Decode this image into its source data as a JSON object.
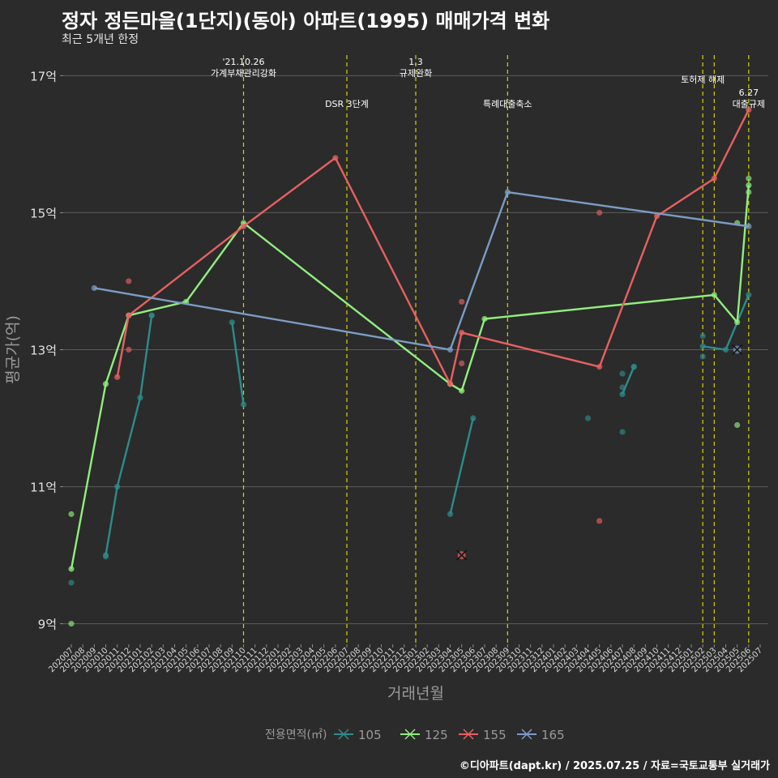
{
  "header": {
    "title": "정자 정든마을(1단지)(동아) 아파트(1995) 매매가격 변화",
    "subtitle": "최근 5개년 한정",
    "caption": "©디아파트(dapt.kr) / 2025.07.25 / 자료=국토교통부 실거래가"
  },
  "chart_data": {
    "type": "line",
    "xlabel": "거래년월",
    "ylabel": "평균가(억)",
    "ylim": [
      8.7,
      17.3
    ],
    "y_ticks": [
      {
        "value": 9,
        "label": "9억"
      },
      {
        "value": 11,
        "label": "11억"
      },
      {
        "value": 13,
        "label": "13억"
      },
      {
        "value": 15,
        "label": "15억"
      },
      {
        "value": 17,
        "label": "17억"
      }
    ],
    "x_categories": [
      "202007",
      "202008",
      "202009",
      "202010",
      "202011",
      "202012",
      "202101",
      "202102",
      "202103",
      "202104",
      "202105",
      "202106",
      "202107",
      "202108",
      "202109",
      "202110",
      "202111",
      "202112",
      "202201",
      "202202",
      "202203",
      "202204",
      "202205",
      "202206",
      "202207",
      "202208",
      "202209",
      "202210",
      "202211",
      "202212",
      "202301",
      "202302",
      "202303",
      "202304",
      "202305",
      "202306",
      "202307",
      "202308",
      "202309",
      "202310",
      "202311",
      "202312",
      "202401",
      "202402",
      "202403",
      "202404",
      "202405",
      "202406",
      "202407",
      "202408",
      "202409",
      "202410",
      "202411",
      "202412",
      "202501",
      "202502",
      "202503",
      "202504",
      "202505",
      "202506",
      "202507"
    ],
    "x_ticks": [
      "202007",
      "202008",
      "202009",
      "202010",
      "202011",
      "202012",
      "202101",
      "202102",
      "202103",
      "202104",
      "202105",
      "202106",
      "202107",
      "202108",
      "202109",
      "202110",
      "202111",
      "202112",
      "202201",
      "202202",
      "202203",
      "202204",
      "202205",
      "202206",
      "202207",
      "202208",
      "202209",
      "202210",
      "202211",
      "202212",
      "202301",
      "202302",
      "202303",
      "202304",
      "202305",
      "202306",
      "202307",
      "202308",
      "202309",
      "202310",
      "202311",
      "202312",
      "202401",
      "202402",
      "202403",
      "202404",
      "202405",
      "202406",
      "202407",
      "202408",
      "202409",
      "202410",
      "202411",
      "202412",
      "202501",
      "202502",
      "202503",
      "202504",
      "202505",
      "202506",
      "202507"
    ],
    "legend": {
      "title": "전용면적(㎡)",
      "position": "bottom"
    },
    "events": [
      {
        "x": "202110",
        "label_lines": [
          "'21.10.26",
          "가계부채관리강화"
        ],
        "row": 1
      },
      {
        "x": "202207",
        "label_lines": [
          "DSR 3단계"
        ],
        "row": 2
      },
      {
        "x": "202301",
        "label_lines": [
          "1.3",
          "규제완화"
        ],
        "row": 1
      },
      {
        "x": "202309",
        "label_lines": [
          "특례대출축소"
        ],
        "row": 2
      },
      {
        "x": "202502",
        "label_lines": [
          "토허제 해제"
        ],
        "row": 1
      },
      {
        "x": "202503",
        "label_lines": [],
        "row": 1
      },
      {
        "x": "202506",
        "label_lines": [
          "6.27",
          "대출규제"
        ],
        "row": 2
      }
    ],
    "series": [
      {
        "name": "105",
        "color": "#2e8b8b",
        "segments": [
          [
            [
              "202010",
              10.0
            ],
            [
              "202011",
              11.0
            ],
            [
              "202101",
              12.3
            ],
            [
              "202102",
              13.5
            ]
          ],
          [
            [
              "202109",
              13.4
            ],
            [
              "202110",
              12.2
            ]
          ],
          [
            [
              "202304",
              10.6
            ],
            [
              "202306",
              12.0
            ]
          ],
          [
            [
              "202407",
              12.35
            ],
            [
              "202408",
              12.75
            ]
          ],
          [
            [
              "202502",
              13.05
            ],
            [
              "202504",
              13.0
            ],
            [
              "202506",
              13.8
            ]
          ]
        ],
        "points": [
          [
            "202007",
            9.6
          ],
          [
            "202010",
            9.98
          ],
          [
            "202102",
            13.5
          ],
          [
            "202404",
            12.0
          ],
          [
            "202407",
            12.65
          ],
          [
            "202407",
            12.45
          ],
          [
            "202407",
            11.8
          ],
          [
            "202408",
            12.75
          ],
          [
            "202502",
            13.2
          ],
          [
            "202502",
            12.9
          ]
        ],
        "cancelled": []
      },
      {
        "name": "125",
        "color": "#90ee7e",
        "segments": [
          [
            [
              "202007",
              9.8
            ],
            [
              "202010",
              12.5
            ],
            [
              "202012",
              13.5
            ],
            [
              "202105",
              13.7
            ],
            [
              "202110",
              14.85
            ],
            [
              "202304",
              12.5
            ],
            [
              "202305",
              12.4
            ],
            [
              "202307",
              13.45
            ],
            [
              "202503",
              13.8
            ],
            [
              "202505",
              13.4
            ],
            [
              "202506",
              15.4
            ]
          ]
        ],
        "points": [
          [
            "202007",
            10.6
          ],
          [
            "202007",
            9.0
          ],
          [
            "202505",
            11.9
          ],
          [
            "202505",
            14.85
          ],
          [
            "202506",
            15.5
          ],
          [
            "202506",
            15.3
          ]
        ],
        "cancelled": []
      },
      {
        "name": "155",
        "color": "#e86060",
        "segments": [
          [
            [
              "202011",
              12.6
            ],
            [
              "202012",
              13.5
            ],
            [
              "202110",
              14.8
            ],
            [
              "202206",
              15.8
            ],
            [
              "202304",
              12.5
            ],
            [
              "202305",
              13.25
            ],
            [
              "202405",
              12.75
            ],
            [
              "202410",
              14.95
            ],
            [
              "202503",
              15.5
            ],
            [
              "202506",
              16.5
            ]
          ]
        ],
        "points": [
          [
            "202012",
            14.0
          ],
          [
            "202012",
            13.0
          ],
          [
            "202305",
            13.7
          ],
          [
            "202305",
            12.8
          ],
          [
            "202405",
            15.0
          ],
          [
            "202405",
            10.5
          ]
        ],
        "cancelled": [
          [
            "202305",
            10.0
          ]
        ]
      },
      {
        "name": "165",
        "color": "#7b9cc4",
        "segments": [
          [
            [
              "202009",
              13.9
            ],
            [
              "202304",
              13.0
            ],
            [
              "202309",
              15.3
            ],
            [
              "202506",
              14.8
            ]
          ]
        ],
        "points": [],
        "cancelled": [
          [
            "202505",
            13.0
          ]
        ]
      }
    ]
  }
}
